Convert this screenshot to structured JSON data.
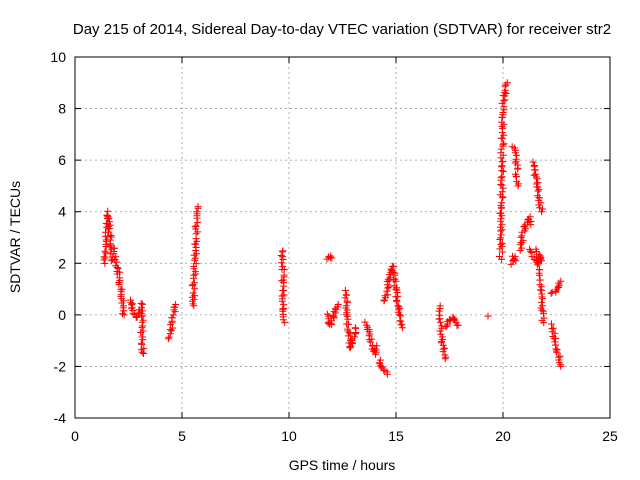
{
  "chart_data": {
    "type": "scatter",
    "title": "Day 215 of 2014, Sidereal Day-to-day VTEC variation (SDTVAR) for receiver str2",
    "xlabel": "GPS time / hours",
    "ylabel": "SDTVAR / TECUs",
    "xlim": [
      0,
      25
    ],
    "ylim": [
      -4,
      10
    ],
    "xticks": [
      0,
      5,
      10,
      15,
      20,
      25
    ],
    "yticks": [
      -4,
      -2,
      0,
      2,
      4,
      6,
      8,
      10
    ],
    "grid": true,
    "marker": "+",
    "marker_color": "#ff0000",
    "segments": [
      {
        "name": "s1",
        "x": [
          1.4,
          1.45,
          1.5,
          1.55,
          1.6,
          1.65,
          1.7
        ],
        "y": [
          2.0,
          2.8,
          3.5,
          4.0,
          3.6,
          3.0,
          2.1
        ]
      },
      {
        "name": "s2",
        "x": [
          1.8,
          1.9,
          2.0,
          2.1,
          2.2,
          2.25,
          2.3
        ],
        "y": [
          2.6,
          2.2,
          1.8,
          1.2,
          0.7,
          0.3,
          0.0
        ]
      },
      {
        "name": "s3",
        "x": [
          2.6,
          2.7,
          2.8,
          2.9,
          3.0
        ],
        "y": [
          0.6,
          0.3,
          0.0,
          -0.1,
          0.2
        ]
      },
      {
        "name": "s4",
        "x": [
          3.1,
          3.15,
          3.2
        ],
        "y": [
          0.5,
          -1.3,
          -1.5
        ]
      },
      {
        "name": "s5",
        "x": [
          4.4,
          4.5,
          4.6,
          4.7
        ],
        "y": [
          -0.9,
          -0.5,
          0.0,
          0.4
        ]
      },
      {
        "name": "s6",
        "x": [
          5.5,
          5.55,
          5.6,
          5.65,
          5.7,
          5.75
        ],
        "y": [
          0.3,
          1.0,
          2.0,
          2.7,
          3.8,
          4.2
        ]
      },
      {
        "name": "s7",
        "x": [
          9.7,
          9.75,
          9.8
        ],
        "y": [
          2.5,
          0.3,
          -0.3
        ]
      },
      {
        "name": "s8",
        "x": [
          11.8,
          11.9,
          12.0
        ],
        "y": [
          2.2,
          2.3,
          2.2
        ]
      },
      {
        "name": "s9",
        "x": [
          11.8,
          11.9,
          12.0,
          12.1,
          12.2,
          12.3
        ],
        "y": [
          0.0,
          -0.4,
          -0.3,
          -0.1,
          0.2,
          0.4
        ]
      },
      {
        "name": "s10",
        "x": [
          12.6,
          12.7,
          12.8,
          12.9,
          13.0,
          13.1
        ],
        "y": [
          0.9,
          0.3,
          -0.7,
          -1.3,
          -1.0,
          -0.5
        ]
      },
      {
        "name": "s11",
        "x": [
          13.6,
          13.7,
          13.8,
          13.9,
          14.0,
          14.1
        ],
        "y": [
          -0.3,
          -0.6,
          -1.0,
          -1.3,
          -1.5,
          -1.2
        ]
      },
      {
        "name": "s12",
        "x": [
          14.2,
          14.3,
          14.4,
          14.5,
          14.6
        ],
        "y": [
          -1.8,
          -2.0,
          -2.1,
          -2.2,
          -2.3
        ]
      },
      {
        "name": "s13",
        "x": [
          14.5,
          14.6,
          14.7,
          14.8,
          14.9,
          15.0,
          15.1,
          15.2,
          15.3
        ],
        "y": [
          0.5,
          1.0,
          1.5,
          1.9,
          1.6,
          1.0,
          0.4,
          -0.1,
          -0.5
        ]
      },
      {
        "name": "s14",
        "x": [
          17.0,
          17.1,
          17.2,
          17.3
        ],
        "y": [
          0.3,
          -0.5,
          -1.2,
          -1.7
        ]
      },
      {
        "name": "s15",
        "x": [
          17.3,
          17.4,
          17.5,
          17.6,
          17.7,
          17.8,
          17.9
        ],
        "y": [
          -0.5,
          -0.3,
          -0.2,
          -0.1,
          -0.2,
          -0.3,
          -0.4
        ]
      },
      {
        "name": "s16",
        "x": [
          19.3
        ],
        "y": [
          -0.05
        ]
      },
      {
        "name": "s17",
        "x": [
          19.9,
          20.0,
          20.1,
          20.2
        ],
        "y": [
          2.2,
          8.2,
          8.6,
          9.0
        ]
      },
      {
        "name": "s18",
        "x": [
          20.5,
          20.6,
          20.7
        ],
        "y": [
          6.5,
          6.0,
          5.0
        ]
      },
      {
        "name": "s19",
        "x": [
          20.4,
          20.5,
          20.6
        ],
        "y": [
          2.0,
          2.3,
          2.1
        ]
      },
      {
        "name": "s20",
        "x": [
          20.8,
          20.9,
          21.0,
          21.1,
          21.2,
          21.3
        ],
        "y": [
          2.5,
          3.0,
          3.3,
          3.6,
          3.8,
          3.5
        ]
      },
      {
        "name": "s21",
        "x": [
          21.4,
          21.5,
          21.6,
          21.7,
          21.8
        ],
        "y": [
          5.9,
          5.4,
          5.0,
          4.4,
          4.0
        ]
      },
      {
        "name": "s22",
        "x": [
          21.3,
          21.4,
          21.5,
          21.6,
          21.7,
          21.8
        ],
        "y": [
          2.5,
          2.3,
          2.2,
          2.0,
          2.3,
          2.1
        ]
      },
      {
        "name": "s23",
        "x": [
          21.6,
          21.7,
          21.8,
          21.9
        ],
        "y": [
          2.5,
          1.5,
          0.5,
          -0.3
        ]
      },
      {
        "name": "s24",
        "x": [
          22.3,
          22.4,
          22.5,
          22.6,
          22.7
        ],
        "y": [
          0.8,
          0.9,
          1.0,
          1.2,
          1.3
        ]
      },
      {
        "name": "s25",
        "x": [
          22.3,
          22.4,
          22.5,
          22.6,
          22.7
        ],
        "y": [
          -0.4,
          -0.8,
          -1.2,
          -1.6,
          -2.0
        ]
      }
    ]
  }
}
